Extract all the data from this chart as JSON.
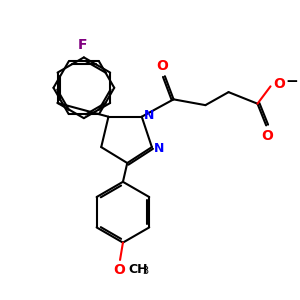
{
  "bg_color": "#ffffff",
  "figsize": [
    3.0,
    3.0
  ],
  "dpi": 100,
  "bond_color": "#000000",
  "N_color": "#0000ff",
  "O_color": "#ff0000",
  "F_color": "#800080",
  "lw": 1.5,
  "xlim": [
    0,
    10
  ],
  "ylim": [
    0,
    10
  ]
}
